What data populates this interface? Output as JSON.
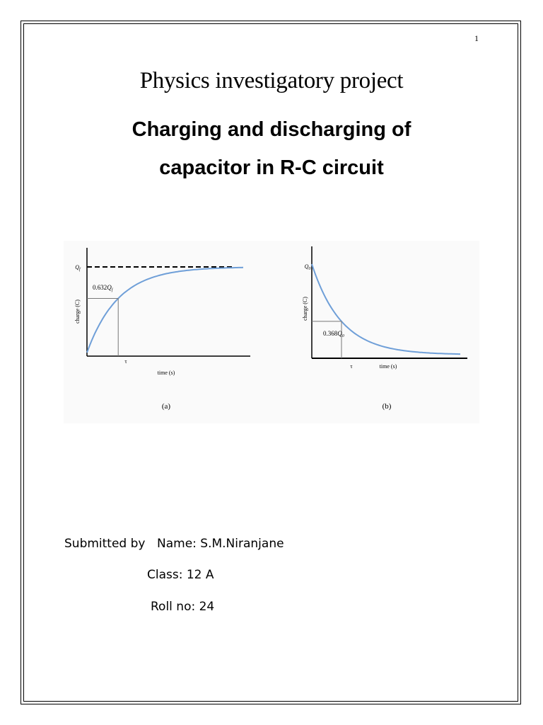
{
  "page": {
    "number": "1",
    "title": "Physics investigatory project",
    "subtitle_line1": "Charging and discharging of",
    "subtitle_line2": "capacitor in R-C circuit"
  },
  "submission": {
    "submitted_by": "Submitted by",
    "name": "Name: S.M.Niranjane",
    "class": "Class: 12 A",
    "roll": "Roll no: 24"
  },
  "chart_data": [
    {
      "type": "line",
      "panel_label": "(a)",
      "xlabel": "time (s)",
      "ylabel": "charge (C)",
      "asymptote_label": "Q_f",
      "marker_label": "0.632Q_f",
      "x_tick_label": "τ",
      "series": [
        {
          "x": [
            0,
            0.25,
            0.5,
            0.75,
            1,
            1.5,
            2,
            2.5,
            3,
            3.5,
            4,
            4.5,
            5
          ],
          "y": [
            0,
            0.221,
            0.393,
            0.528,
            0.632,
            0.777,
            0.865,
            0.918,
            0.95,
            0.97,
            0.982,
            0.989,
            0.993
          ]
        }
      ],
      "xlim": [
        0,
        5
      ],
      "ylim": [
        0,
        1.1
      ],
      "asymptote_y": 1,
      "marker_point": [
        1,
        0.632
      ],
      "grid": false,
      "line_color": "#6f9fd8"
    },
    {
      "type": "line",
      "panel_label": "(b)",
      "xlabel": "time (s)",
      "ylabel": "charge (C)",
      "start_label": "Q_0",
      "marker_label": "0.368Q_0",
      "x_tick_label": "τ",
      "series": [
        {
          "x": [
            0,
            0.25,
            0.5,
            0.75,
            1,
            1.5,
            2,
            2.5,
            3,
            3.5,
            4,
            4.5,
            5
          ],
          "y": [
            1,
            0.779,
            0.607,
            0.472,
            0.368,
            0.223,
            0.135,
            0.082,
            0.05,
            0.03,
            0.018,
            0.011,
            0.007
          ]
        }
      ],
      "xlim": [
        0,
        5
      ],
      "ylim": [
        0,
        1.1
      ],
      "marker_point": [
        1,
        0.368
      ],
      "grid": false,
      "line_color": "#6f9fd8"
    }
  ]
}
